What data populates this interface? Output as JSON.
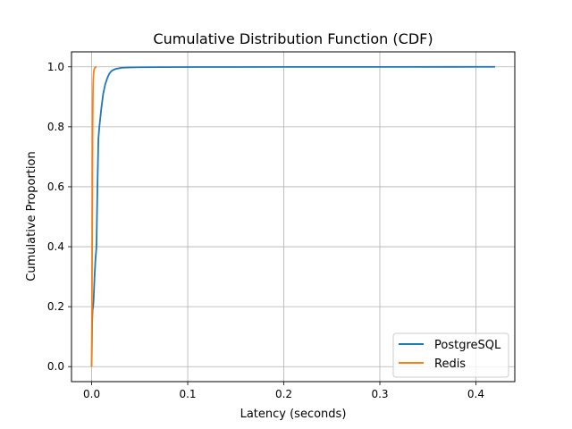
{
  "chart_data": {
    "type": "line",
    "title": "Cumulative Distribution Function (CDF)",
    "xlabel": "Latency (seconds)",
    "ylabel": "Cumulative Proportion",
    "xlim": [
      -0.021,
      0.4405
    ],
    "ylim": [
      -0.05,
      1.05
    ],
    "xticks": [
      0.0,
      0.1,
      0.2,
      0.3,
      0.4
    ],
    "xtick_labels": [
      "0.0",
      "0.1",
      "0.2",
      "0.3",
      "0.4"
    ],
    "yticks": [
      0.0,
      0.2,
      0.4,
      0.6,
      0.8,
      1.0
    ],
    "ytick_labels": [
      "0.0",
      "0.2",
      "0.4",
      "0.6",
      "0.8",
      "1.0"
    ],
    "grid": true,
    "legend_position": "lower-right",
    "series": [
      {
        "name": "PostgreSQL",
        "color": "#1f77b4",
        "x": [
          0.0,
          0.0005,
          0.001,
          0.0015,
          0.002,
          0.003,
          0.004,
          0.005,
          0.006,
          0.007,
          0.008,
          0.01,
          0.012,
          0.014,
          0.016,
          0.018,
          0.02,
          0.022,
          0.025,
          0.028,
          0.032,
          0.04,
          0.05,
          0.07,
          0.1,
          0.2,
          0.3,
          0.42
        ],
        "y": [
          0.0,
          0.15,
          0.19,
          0.2,
          0.22,
          0.3,
          0.36,
          0.4,
          0.6,
          0.76,
          0.8,
          0.86,
          0.91,
          0.94,
          0.96,
          0.975,
          0.984,
          0.989,
          0.993,
          0.995,
          0.997,
          0.998,
          0.9985,
          0.999,
          0.9993,
          0.9996,
          0.9998,
          1.0
        ]
      },
      {
        "name": "Redis",
        "color": "#ff7f0e",
        "x": [
          0.0,
          0.0001,
          0.0003,
          0.0005,
          0.0008,
          0.001,
          0.0013,
          0.0016,
          0.002,
          0.0025,
          0.003,
          0.004,
          0.005
        ],
        "y": [
          0.0,
          0.1,
          0.2,
          0.4,
          0.6,
          0.8,
          0.9,
          0.95,
          0.98,
          0.99,
          0.995,
          0.999,
          1.0
        ]
      }
    ]
  }
}
